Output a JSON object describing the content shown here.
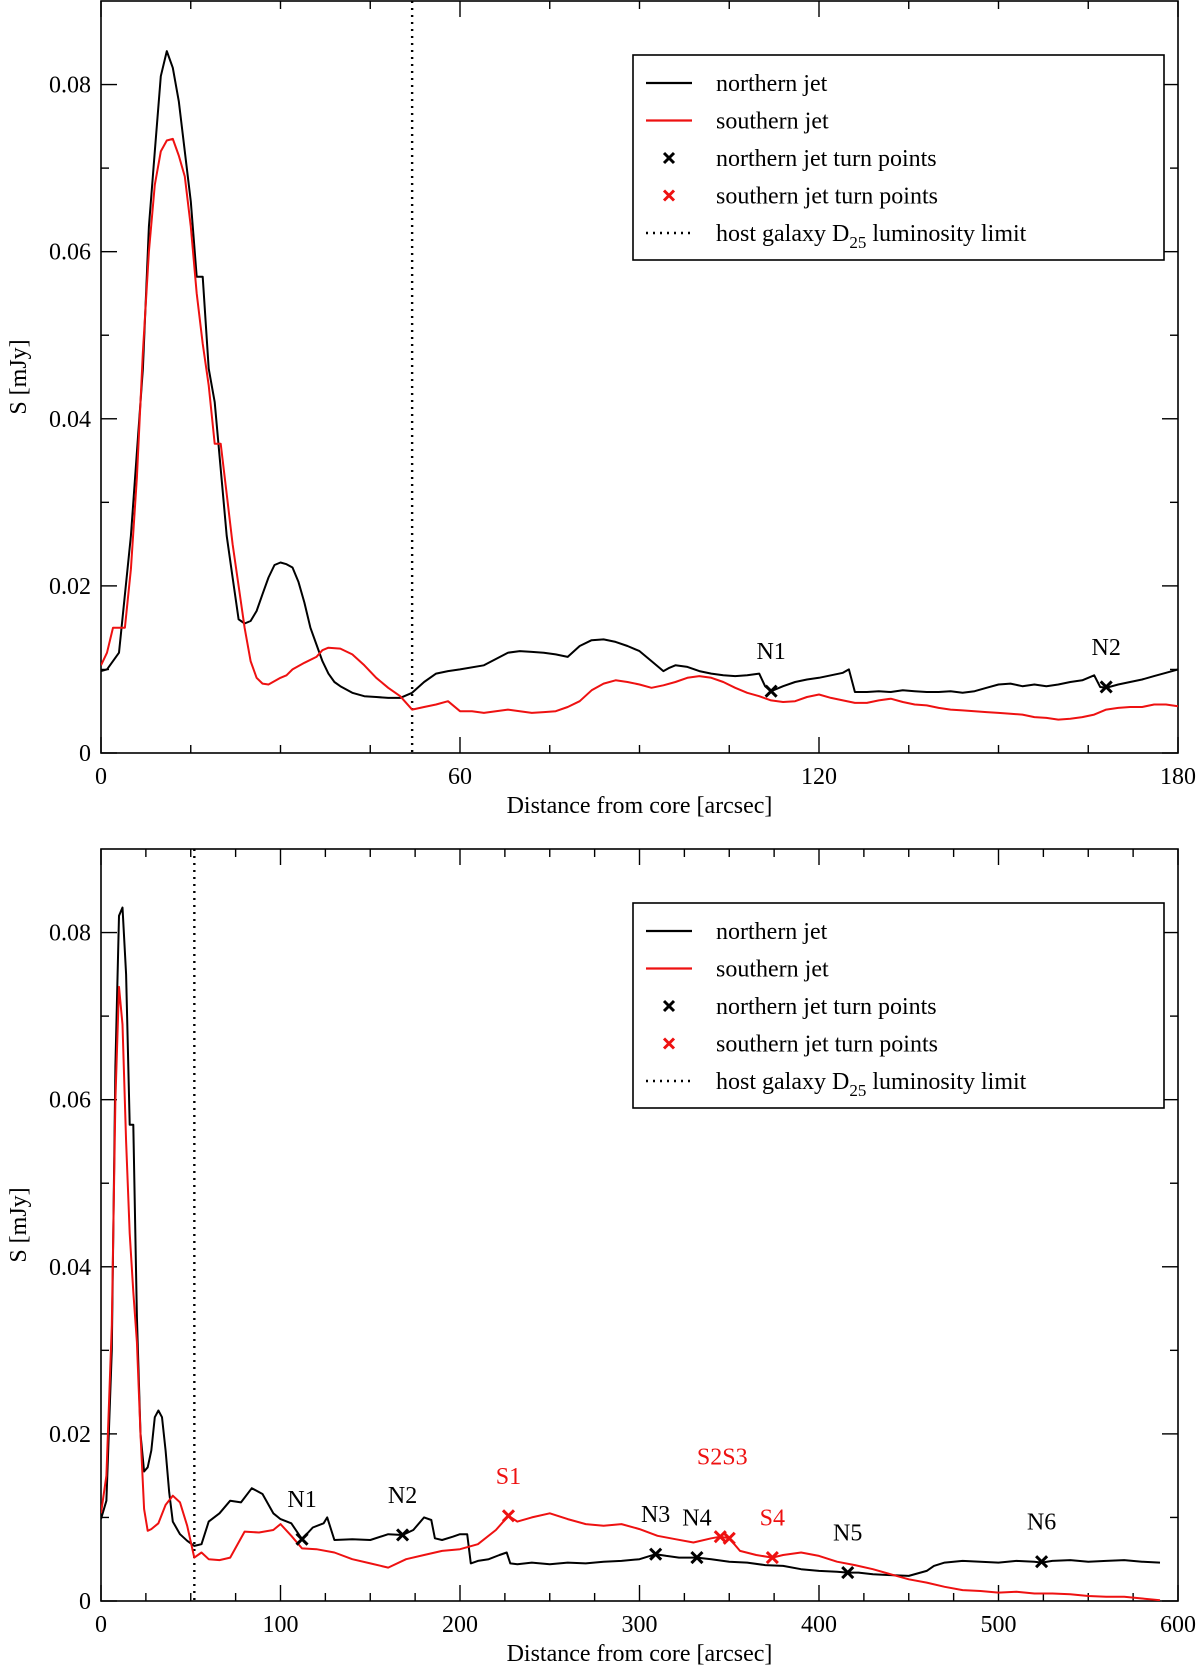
{
  "colors": {
    "northern": "#000000",
    "southern": "#ee1111"
  },
  "chart_data": [
    {
      "type": "line",
      "xlabel": "Distance from core [arcsec]",
      "ylabel": "S [mJy]",
      "xlim": [
        0,
        180
      ],
      "ylim": [
        0,
        0.09
      ],
      "xticks": [
        0,
        60,
        120,
        180
      ],
      "xtick_labels": [
        "0",
        "60",
        "120",
        "180"
      ],
      "yticks": [
        0,
        0.02,
        0.04,
        0.06,
        0.08
      ],
      "ytick_labels": [
        "0",
        "0.02",
        "0.04",
        "0.06",
        "0.08"
      ],
      "grid": false,
      "legend_position": "top-right",
      "legend": {
        "northern": "northern jet",
        "southern": "southern jet",
        "northern_turns": "northern jet turn points",
        "southern_turns": "southern jet turn points",
        "limit_prefix": "host galaxy D",
        "limit_sub": "25",
        "limit_suffix": " luminosity limit"
      },
      "vline_x": 52,
      "series": [
        {
          "name": "northern jet",
          "x": [
            0,
            1,
            3,
            5,
            7,
            8,
            9,
            10,
            11,
            12,
            13,
            15,
            16,
            17,
            18,
            19,
            20,
            21,
            22,
            23,
            24,
            25,
            26,
            27,
            28,
            29,
            30,
            31,
            32,
            33,
            34,
            35,
            36,
            37,
            38,
            39,
            40,
            42,
            44,
            46,
            48,
            50,
            52,
            54,
            56,
            58,
            60,
            64,
            68,
            70,
            72,
            74,
            76,
            78,
            80,
            82,
            84,
            86,
            88,
            90,
            92,
            94,
            95,
            96,
            98,
            100,
            102,
            104,
            106,
            108,
            110,
            111,
            112,
            114,
            116,
            118,
            120,
            122,
            124,
            125,
            126,
            128,
            130,
            132,
            134,
            136,
            138,
            140,
            142,
            144,
            146,
            148,
            150,
            152,
            154,
            156,
            158,
            160,
            162,
            164,
            166,
            167,
            168,
            170,
            172,
            174,
            176,
            178,
            180
          ],
          "y": [
            0.0098,
            0.01,
            0.012,
            0.026,
            0.046,
            0.063,
            0.072,
            0.081,
            0.084,
            0.082,
            0.078,
            0.066,
            0.057,
            0.057,
            0.046,
            0.042,
            0.034,
            0.026,
            0.021,
            0.016,
            0.0155,
            0.0158,
            0.017,
            0.019,
            0.021,
            0.0225,
            0.0228,
            0.0226,
            0.0222,
            0.0205,
            0.018,
            0.015,
            0.013,
            0.011,
            0.0095,
            0.0085,
            0.008,
            0.0072,
            0.0068,
            0.0067,
            0.0066,
            0.0066,
            0.0072,
            0.0085,
            0.0095,
            0.0098,
            0.01,
            0.0105,
            0.012,
            0.0122,
            0.0121,
            0.012,
            0.0118,
            0.0115,
            0.0128,
            0.0135,
            0.0136,
            0.0133,
            0.0128,
            0.0122,
            0.011,
            0.0098,
            0.0102,
            0.0105,
            0.0103,
            0.0098,
            0.0095,
            0.0093,
            0.0092,
            0.0093,
            0.0095,
            0.008,
            0.0074,
            0.008,
            0.0085,
            0.0088,
            0.009,
            0.0093,
            0.0096,
            0.01,
            0.0073,
            0.0073,
            0.0074,
            0.0073,
            0.0075,
            0.0074,
            0.0073,
            0.0073,
            0.0074,
            0.0072,
            0.0074,
            0.0078,
            0.0082,
            0.0083,
            0.008,
            0.0082,
            0.008,
            0.0082,
            0.0085,
            0.0087,
            0.0093,
            0.0079,
            0.0078,
            0.0082,
            0.0085,
            0.0088,
            0.0092,
            0.0096,
            0.01
          ]
        },
        {
          "name": "southern jet",
          "x": [
            0,
            1,
            2,
            3,
            4,
            5,
            6,
            7,
            8,
            9,
            10,
            11,
            12,
            13,
            14,
            15,
            16,
            17,
            18,
            19,
            20,
            21,
            22,
            23,
            24,
            25,
            26,
            27,
            28,
            29,
            30,
            31,
            32,
            34,
            36,
            37,
            38,
            40,
            42,
            44,
            46,
            48,
            50,
            52,
            54,
            56,
            58,
            60,
            62,
            64,
            66,
            68,
            70,
            72,
            74,
            76,
            78,
            80,
            82,
            84,
            86,
            88,
            90,
            92,
            94,
            96,
            98,
            100,
            102,
            104,
            106,
            108,
            110,
            112,
            114,
            116,
            118,
            120,
            122,
            124,
            126,
            128,
            130,
            132,
            134,
            136,
            138,
            140,
            142,
            144,
            146,
            148,
            150,
            152,
            154,
            156,
            158,
            160,
            162,
            164,
            166,
            168,
            170,
            172,
            174,
            176,
            178,
            180
          ],
          "y": [
            0.0105,
            0.012,
            0.015,
            0.015,
            0.015,
            0.022,
            0.033,
            0.048,
            0.06,
            0.068,
            0.072,
            0.0733,
            0.0735,
            0.0715,
            0.069,
            0.063,
            0.055,
            0.049,
            0.044,
            0.037,
            0.037,
            0.031,
            0.025,
            0.02,
            0.015,
            0.011,
            0.009,
            0.0083,
            0.0082,
            0.0086,
            0.009,
            0.0093,
            0.01,
            0.0108,
            0.0115,
            0.0123,
            0.0126,
            0.0125,
            0.0118,
            0.0105,
            0.009,
            0.0078,
            0.0068,
            0.0052,
            0.0055,
            0.0058,
            0.0062,
            0.005,
            0.005,
            0.0048,
            0.005,
            0.0052,
            0.005,
            0.0048,
            0.0049,
            0.005,
            0.0055,
            0.0062,
            0.0075,
            0.0083,
            0.0087,
            0.0085,
            0.0082,
            0.0078,
            0.0081,
            0.0085,
            0.009,
            0.0092,
            0.009,
            0.0085,
            0.0078,
            0.0072,
            0.0068,
            0.0063,
            0.0061,
            0.0062,
            0.0067,
            0.007,
            0.0066,
            0.0063,
            0.006,
            0.006,
            0.0063,
            0.0065,
            0.0061,
            0.0058,
            0.0057,
            0.0054,
            0.0052,
            0.0051,
            0.005,
            0.0049,
            0.0048,
            0.0047,
            0.0046,
            0.0043,
            0.0042,
            0.004,
            0.0041,
            0.0043,
            0.0046,
            0.0052,
            0.0054,
            0.0055,
            0.0055,
            0.0058,
            0.0058,
            0.0056
          ]
        }
      ],
      "turn_points": [
        {
          "label": "N1",
          "series": "northern",
          "x": 112,
          "y": 0.0074
        },
        {
          "label": "N2",
          "series": "northern",
          "x": 168,
          "y": 0.0079
        }
      ]
    },
    {
      "type": "line",
      "xlabel": "Distance from core [arcsec]",
      "ylabel": "S [mJy]",
      "xlim": [
        0,
        600
      ],
      "ylim": [
        0,
        0.09
      ],
      "xticks": [
        0,
        100,
        200,
        300,
        400,
        500,
        600
      ],
      "xtick_labels": [
        "0",
        "100",
        "200",
        "300",
        "400",
        "500",
        "600"
      ],
      "yticks": [
        0,
        0.02,
        0.04,
        0.06,
        0.08
      ],
      "ytick_labels": [
        "0",
        "0.02",
        "0.04",
        "0.06",
        "0.08"
      ],
      "grid": false,
      "legend_position": "top-right",
      "legend": {
        "northern": "northern jet",
        "southern": "southern jet",
        "northern_turns": "northern jet turn points",
        "southern_turns": "southern jet turn points",
        "limit_prefix": "host galaxy D",
        "limit_sub": "25",
        "limit_suffix": " luminosity limit"
      },
      "vline_x": 52,
      "series": [
        {
          "name": "northern jet",
          "x": [
            0,
            3,
            6,
            8,
            10,
            12,
            14,
            16,
            18,
            20,
            22,
            24,
            26,
            28,
            30,
            32,
            34,
            36,
            38,
            40,
            44,
            48,
            52,
            56,
            60,
            66,
            72,
            78,
            84,
            90,
            96,
            100,
            106,
            112,
            118,
            124,
            126,
            130,
            140,
            150,
            160,
            168,
            174,
            180,
            184,
            186,
            190,
            196,
            200,
            204,
            206,
            210,
            216,
            222,
            226,
            228,
            232,
            240,
            250,
            260,
            270,
            280,
            290,
            300,
            309,
            315,
            322,
            332,
            340,
            350,
            360,
            370,
            380,
            390,
            400,
            410,
            416,
            422,
            430,
            440,
            450,
            460,
            464,
            470,
            480,
            490,
            500,
            510,
            520,
            524,
            530,
            540,
            550,
            560,
            570,
            580,
            590
          ],
          "y": [
            0.0098,
            0.012,
            0.03,
            0.064,
            0.082,
            0.083,
            0.075,
            0.057,
            0.057,
            0.034,
            0.02,
            0.0155,
            0.016,
            0.018,
            0.022,
            0.0228,
            0.022,
            0.018,
            0.013,
            0.0095,
            0.008,
            0.0072,
            0.0066,
            0.0068,
            0.0095,
            0.0105,
            0.012,
            0.0118,
            0.0135,
            0.0128,
            0.0105,
            0.0098,
            0.0093,
            0.0074,
            0.0088,
            0.0093,
            0.01,
            0.0073,
            0.0074,
            0.0073,
            0.008,
            0.0079,
            0.0085,
            0.01,
            0.0097,
            0.0075,
            0.0073,
            0.0077,
            0.008,
            0.008,
            0.0045,
            0.0048,
            0.005,
            0.0055,
            0.0058,
            0.0045,
            0.0044,
            0.0046,
            0.0044,
            0.0046,
            0.0045,
            0.0047,
            0.0048,
            0.005,
            0.0056,
            0.0054,
            0.0052,
            0.0052,
            0.005,
            0.0047,
            0.0046,
            0.0043,
            0.0042,
            0.0038,
            0.0036,
            0.0035,
            0.0034,
            0.0034,
            0.0032,
            0.0031,
            0.003,
            0.0036,
            0.0042,
            0.0046,
            0.0048,
            0.0047,
            0.0046,
            0.0048,
            0.0047,
            0.0046,
            0.0048,
            0.0049,
            0.0047,
            0.0048,
            0.0049,
            0.0047,
            0.0046
          ]
        },
        {
          "name": "southern jet",
          "x": [
            0,
            3,
            6,
            8,
            10,
            12,
            14,
            16,
            18,
            20,
            22,
            24,
            26,
            28,
            32,
            36,
            40,
            44,
            48,
            52,
            56,
            60,
            66,
            72,
            80,
            88,
            96,
            100,
            106,
            112,
            120,
            130,
            140,
            150,
            160,
            170,
            180,
            190,
            200,
            210,
            220,
            227,
            232,
            240,
            250,
            260,
            270,
            280,
            290,
            300,
            310,
            320,
            330,
            340,
            345,
            350,
            356,
            365,
            374,
            380,
            390,
            400,
            410,
            420,
            430,
            440,
            450,
            460,
            470,
            480,
            490,
            500,
            510,
            520,
            530,
            540,
            550,
            560,
            570,
            580,
            590
          ],
          "y": [
            0.0105,
            0.015,
            0.033,
            0.06,
            0.0735,
            0.069,
            0.055,
            0.044,
            0.037,
            0.031,
            0.02,
            0.011,
            0.0084,
            0.0086,
            0.0093,
            0.0115,
            0.0126,
            0.0118,
            0.009,
            0.0052,
            0.0058,
            0.005,
            0.0049,
            0.0052,
            0.0083,
            0.0082,
            0.0085,
            0.0092,
            0.0078,
            0.0063,
            0.0062,
            0.0058,
            0.005,
            0.0045,
            0.004,
            0.005,
            0.0055,
            0.006,
            0.0062,
            0.0068,
            0.0085,
            0.0102,
            0.0095,
            0.01,
            0.0105,
            0.0098,
            0.0092,
            0.009,
            0.0092,
            0.0086,
            0.0078,
            0.0074,
            0.007,
            0.0075,
            0.0077,
            0.0075,
            0.006,
            0.0055,
            0.0052,
            0.0055,
            0.0058,
            0.0054,
            0.0047,
            0.0043,
            0.0038,
            0.0032,
            0.0026,
            0.0022,
            0.0017,
            0.0013,
            0.0012,
            0.001,
            0.0011,
            0.0009,
            0.0009,
            0.0008,
            0.0006,
            0.0005,
            0.0005,
            0.0003,
            0.0001
          ]
        }
      ],
      "turn_points": [
        {
          "label": "N1",
          "series": "northern",
          "x": 112,
          "y": 0.0074
        },
        {
          "label": "N2",
          "series": "northern",
          "x": 168,
          "y": 0.0079
        },
        {
          "label": "S1",
          "series": "southern",
          "x": 227,
          "y": 0.0102
        },
        {
          "label": "N3",
          "series": "northern",
          "x": 309,
          "y": 0.0056
        },
        {
          "label": "N4",
          "series": "northern",
          "x": 332,
          "y": 0.0052
        },
        {
          "label": "S2S3",
          "series": "southern",
          "x": 345,
          "y": 0.0077
        },
        {
          "label": "",
          "series": "southern",
          "x": 350,
          "y": 0.0075
        },
        {
          "label": "S4",
          "series": "southern",
          "x": 374,
          "y": 0.0052
        },
        {
          "label": "N5",
          "series": "northern",
          "x": 416,
          "y": 0.0034
        },
        {
          "label": "N6",
          "series": "northern",
          "x": 524,
          "y": 0.0047
        }
      ]
    }
  ]
}
